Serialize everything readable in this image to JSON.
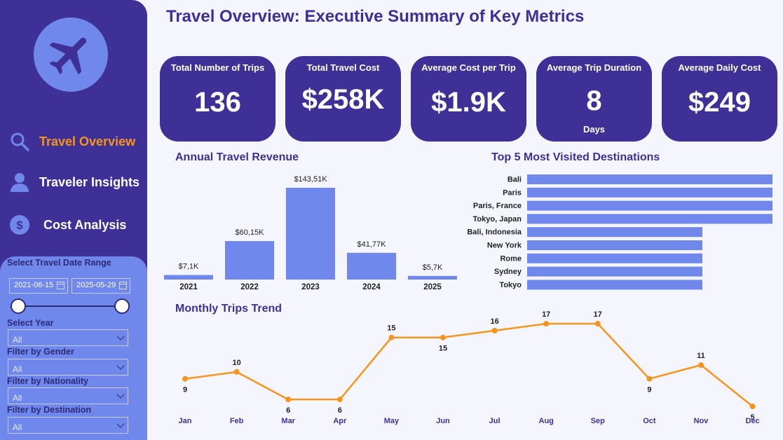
{
  "title": "Travel Overview: Executive Summary of Key Metrics",
  "colors": {
    "sidebar": "#3f3097",
    "accent": "#f7941d",
    "bar": "#7087eb",
    "line": "#f7941d",
    "text": "#3f3097"
  },
  "logo": {
    "icon": "airplane-icon"
  },
  "nav": [
    {
      "label": "Travel Overview",
      "icon": "search-icon",
      "active": true
    },
    {
      "label": "Traveler Insights",
      "icon": "person-icon",
      "active": false
    },
    {
      "label": "Cost Analysis",
      "icon": "dollar-icon",
      "active": false
    }
  ],
  "filters": {
    "date_range_title": "Select Travel Date Range",
    "date_start": "2021-06-15",
    "date_end": "2025-05-29",
    "year_title": "Select Year",
    "year_value": "All",
    "gender_title": "Filter by Gender",
    "gender_value": "All",
    "nationality_title": "Filter by Nationality",
    "nationality_value": "All",
    "destination_title": "Filter by Destination",
    "destination_value": "All"
  },
  "kpis": [
    {
      "label": "Total Number of Trips",
      "value": "136",
      "sub": ""
    },
    {
      "label": "Total Travel Cost",
      "value": "$258K",
      "sub": ""
    },
    {
      "label": "Average Cost per Trip",
      "value": "$1.9K",
      "sub": ""
    },
    {
      "label": "Average Trip Duration",
      "value": "8",
      "sub": "Days"
    },
    {
      "label": "Average Daily Cost",
      "value": "$249",
      "sub": ""
    }
  ],
  "chart_data": [
    {
      "type": "bar",
      "title": "Annual Travel Revenue",
      "categories": [
        "2021",
        "2022",
        "2023",
        "2024",
        "2025"
      ],
      "values": [
        7.1,
        60.15,
        143.51,
        41.77,
        5.7
      ],
      "data_labels": [
        "$7,1K",
        "$60,15K",
        "$143,51K",
        "$41,77K",
        "$5,7K"
      ],
      "ylim": [
        0,
        143.51
      ]
    },
    {
      "type": "bar",
      "orientation": "horizontal",
      "title": "Top 5 Most Visited Destinations",
      "categories": [
        "Bali",
        "Paris",
        "Paris, France",
        "Tokyo, Japan",
        "Bali, Indonesia",
        "New York",
        "Rome",
        "Sydney",
        "Tokyo"
      ],
      "values": [
        7,
        7,
        7,
        7,
        5,
        5,
        5,
        5,
        5
      ]
    },
    {
      "type": "line",
      "title": "Monthly Trips Trend",
      "categories": [
        "Jan",
        "Feb",
        "Mar",
        "Apr",
        "May",
        "Jun",
        "Jul",
        "Aug",
        "Sep",
        "Oct",
        "Nov",
        "Dec"
      ],
      "values": [
        9,
        10,
        6,
        6,
        15,
        15,
        16,
        17,
        17,
        9,
        11,
        5
      ]
    }
  ]
}
